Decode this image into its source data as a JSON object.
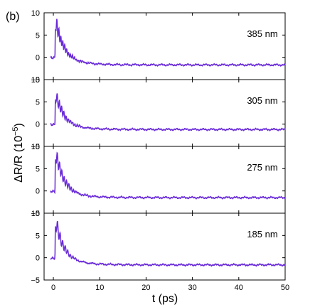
{
  "figure": {
    "corner_label": "(b)",
    "ylabel_main": "ΔR/R (10",
    "ylabel_exp": "−5",
    "ylabel_close": ")",
    "xlabel": "t  (ps)"
  },
  "chart_data": {
    "type": "line",
    "xlim": [
      -2,
      50
    ],
    "ylim": [
      -5,
      10
    ],
    "x_ticks": [
      0,
      10,
      20,
      30,
      40,
      50
    ],
    "y_ticks": [
      -5,
      0,
      5,
      10
    ],
    "y_tick_labels": [
      "−5",
      "0",
      "5",
      "10"
    ],
    "grid": false,
    "line_color": "#6a2bd8",
    "panels": [
      {
        "label": "385 nm",
        "baseline": -1.7,
        "peak": 9.6,
        "osc_period": 0.42,
        "osc_amp": 1.8
      },
      {
        "label": "305 nm",
        "baseline": -1.2,
        "peak": 8.2,
        "osc_period": 0.48,
        "osc_amp": 1.6
      },
      {
        "label": "275 nm",
        "baseline": -1.5,
        "peak": 10.3,
        "osc_period": 0.5,
        "osc_amp": 2.0
      },
      {
        "label": "185 nm",
        "baseline": -1.6,
        "peak": 9.8,
        "osc_period": 0.55,
        "osc_amp": 1.9
      }
    ]
  }
}
